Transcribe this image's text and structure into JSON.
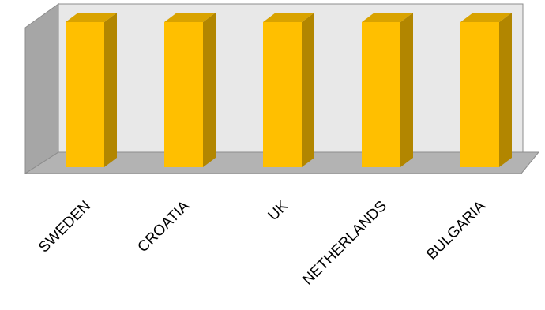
{
  "chart_data": {
    "type": "bar",
    "style": "3d-column",
    "categories": [
      "SWEDEN",
      "CROATIA",
      "UK",
      "NETHERLANDS",
      "BULGARIA"
    ],
    "values": [
      1,
      1,
      1,
      1,
      1
    ],
    "ylim": [
      0,
      1
    ],
    "grid": false,
    "legend": "none",
    "title": "",
    "xlabel": "",
    "ylabel": "",
    "colors": {
      "bar_front": "#FFBF00",
      "bar_side": "#B28600",
      "bar_top": "#D9A300",
      "back_wall": "#E8E8E8",
      "side_wall": "#A6A6A6",
      "floor": "#B3B3B3",
      "edge": "#8C8C8C"
    }
  }
}
